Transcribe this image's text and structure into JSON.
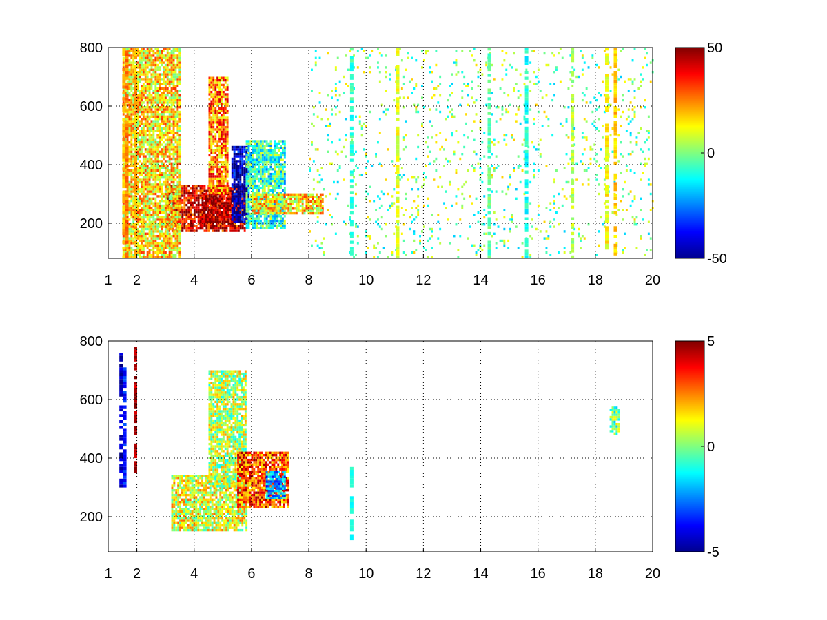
{
  "chart_data": [
    {
      "type": "heatmap",
      "panel": "top",
      "xlim": [
        1,
        20
      ],
      "ylim": [
        80,
        800
      ],
      "xticks": [
        1,
        2,
        4,
        6,
        8,
        10,
        12,
        14,
        16,
        18,
        20
      ],
      "xtick_labels": [
        "1",
        "2",
        "4",
        "6",
        "8",
        "10",
        "12",
        "14",
        "16",
        "18",
        "20"
      ],
      "yticks": [
        200,
        400,
        600,
        800
      ],
      "ytick_labels": [
        "200",
        "400",
        "600",
        "800"
      ],
      "grid": true,
      "colormap": "jet",
      "colorbar": {
        "min": -50,
        "max": 50,
        "ticks": [
          50,
          0,
          -50
        ],
        "tick_labels": [
          "50",
          "0",
          "-50"
        ]
      },
      "regions": [
        {
          "x": [
            3.0,
            5.8
          ],
          "y": [
            170,
            330
          ],
          "value": 40
        },
        {
          "x": [
            4.3,
            5.6
          ],
          "y": [
            200,
            300
          ],
          "value": 48
        },
        {
          "x": [
            4.5,
            5.2
          ],
          "y": [
            300,
            700
          ],
          "value": 25
        },
        {
          "x": [
            5.3,
            5.9
          ],
          "y": [
            200,
            460
          ],
          "value": -45
        },
        {
          "x": [
            5.8,
            7.2
          ],
          "y": [
            180,
            480
          ],
          "value": -8
        },
        {
          "x": [
            6.0,
            8.5
          ],
          "y": [
            230,
            300
          ],
          "value": 15
        },
        {
          "x": [
            1.5,
            3.5
          ],
          "y": [
            80,
            800
          ],
          "value": 15
        },
        {
          "x": [
            8.0,
            20.0
          ],
          "y": [
            80,
            800
          ],
          "value": 0
        }
      ],
      "stripes": [
        {
          "x": 1.55,
          "value": 20
        },
        {
          "x": 1.65,
          "value": 25
        },
        {
          "x": 1.95,
          "value": 20
        },
        {
          "x": 9.5,
          "value": -8
        },
        {
          "x": 11.1,
          "value": 10
        },
        {
          "x": 14.3,
          "value": -3
        },
        {
          "x": 15.6,
          "value": -10
        },
        {
          "x": 17.2,
          "value": 5
        },
        {
          "x": 18.4,
          "value": 12
        },
        {
          "x": 18.7,
          "value": 18
        }
      ]
    },
    {
      "type": "heatmap",
      "panel": "bottom",
      "xlim": [
        1,
        20
      ],
      "ylim": [
        80,
        800
      ],
      "xticks": [
        1,
        2,
        4,
        6,
        8,
        10,
        12,
        14,
        16,
        18,
        20
      ],
      "xtick_labels": [
        "1",
        "2",
        "4",
        "6",
        "8",
        "10",
        "12",
        "14",
        "16",
        "18",
        "20"
      ],
      "yticks": [
        200,
        400,
        600,
        800
      ],
      "ytick_labels": [
        "200",
        "400",
        "600",
        "800"
      ],
      "grid": true,
      "colormap": "jet",
      "colorbar": {
        "min": -5,
        "max": 5,
        "ticks": [
          5,
          0,
          -5
        ],
        "tick_labels": [
          "5",
          "0",
          "-5"
        ]
      },
      "regions": [
        {
          "x": [
            3.2,
            5.8
          ],
          "y": [
            150,
            340
          ],
          "value": 1
        },
        {
          "x": [
            4.5,
            5.8
          ],
          "y": [
            300,
            700
          ],
          "value": 0.5
        },
        {
          "x": [
            5.5,
            7.3
          ],
          "y": [
            230,
            420
          ],
          "value": 3
        },
        {
          "x": [
            6.5,
            7.2
          ],
          "y": [
            260,
            350
          ],
          "value": -2
        },
        {
          "x": [
            18.5,
            18.8
          ],
          "y": [
            480,
            570
          ],
          "value": 0
        }
      ],
      "stripes": [
        {
          "x": 1.45,
          "y": [
            300,
            760
          ],
          "value": -4.5
        },
        {
          "x": 1.58,
          "y": [
            300,
            730
          ],
          "value": -3.5
        },
        {
          "x": 1.95,
          "y": [
            350,
            790
          ],
          "value": 4.5
        },
        {
          "x": 9.5,
          "y": [
            120,
            370
          ],
          "value": -1
        }
      ]
    }
  ]
}
